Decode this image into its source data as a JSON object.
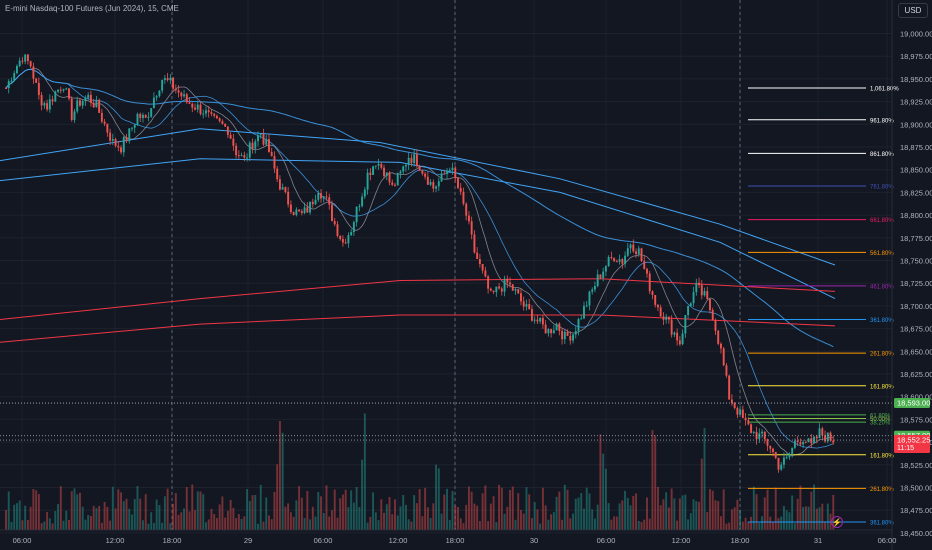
{
  "header": {
    "symbol": "E-mini Nasdaq-100 Futures (Jun 2024)",
    "separator1": ", ",
    "interval": "15",
    "separator2": ", ",
    "exchange": "CME",
    "currency": "USD"
  },
  "colors": {
    "background": "#131722",
    "grid": "#1e222d",
    "up": "#26a69a",
    "down": "#ef5350",
    "ma_blue": "#2962ff",
    "ma_red": "#f23645",
    "price_label": "#f23645",
    "green_label": "#4caf50"
  },
  "icons": {
    "alert": "lightning-bolt-icon"
  },
  "chart_data": {
    "type": "candlestick",
    "y_axis": {
      "ticks": [
        "19,000.00",
        "18,975.00",
        "18,950.00",
        "18,925.00",
        "18,900.00",
        "18,875.00",
        "18,850.00",
        "18,825.00",
        "18,800.00",
        "18,775.00",
        "18,750.00",
        "18,725.00",
        "18,700.00",
        "18,675.00",
        "18,650.00",
        "18,625.00",
        "18,600.00",
        "18,575.00",
        "18,550.00",
        "18,525.00",
        "18,500.00",
        "18,475.00",
        "18,450.00"
      ],
      "range": [
        18440,
        19020
      ]
    },
    "x_axis": {
      "ticks": [
        "06:00",
        "12:00",
        "18:00",
        "29",
        "06:00",
        "12:00",
        "18:00",
        "30",
        "06:00",
        "12:00",
        "18:00",
        "31",
        "06:00"
      ]
    },
    "session_breaks": [
      "18:00",
      "18:00",
      "18:00"
    ],
    "price_labels": [
      {
        "text": "18,593.00",
        "value": 18593,
        "color": "#4caf50"
      },
      {
        "text": "18,557.00",
        "value": 18557,
        "color": "#4caf50"
      },
      {
        "text": "18,552.25",
        "value": 18552.25,
        "color": "#f23645",
        "countdown": "11:15"
      }
    ],
    "fib_levels": [
      {
        "label": "1,061.80%",
        "value": 18940,
        "color": "#ffffff"
      },
      {
        "label": "961.80%",
        "value": 18905,
        "color": "#ffffff"
      },
      {
        "label": "861.80%",
        "value": 18868,
        "color": "#ffffff"
      },
      {
        "label": "761.80%",
        "value": 18832,
        "color": "#3f51b5"
      },
      {
        "label": "661.80%",
        "value": 18795,
        "color": "#e91e63"
      },
      {
        "label": "561.80%",
        "value": 18759,
        "color": "#ff9800"
      },
      {
        "label": "461.80%",
        "value": 18722,
        "color": "#9c27b0"
      },
      {
        "label": "361.80%",
        "value": 18685,
        "color": "#2196f3"
      },
      {
        "label": "261.80%",
        "value": 18648,
        "color": "#ff9800"
      },
      {
        "label": "161.80%",
        "value": 18612,
        "color": "#ffeb3b"
      },
      {
        "label": "61.80%",
        "value": 18580,
        "color": "#4caf50"
      },
      {
        "label": "50.00%",
        "value": 18576,
        "color": "#8bc34a"
      },
      {
        "label": "38.20%",
        "value": 18572,
        "color": "#4caf50"
      },
      {
        "label": "161.80%",
        "value": 18536,
        "color": "#ffeb3b"
      },
      {
        "label": "261.80%",
        "value": 18499,
        "color": "#ff9800"
      },
      {
        "label": "361.80%",
        "value": 18462,
        "color": "#2196f3"
      }
    ],
    "price_path": [
      18940,
      18960,
      18975,
      18965,
      18930,
      18920,
      18935,
      18945,
      18910,
      18925,
      18930,
      18920,
      18900,
      18880,
      18875,
      18890,
      18910,
      18905,
      18930,
      18950,
      18945,
      18935,
      18925,
      18920,
      18915,
      18905,
      18900,
      18895,
      18870,
      18860,
      18880,
      18890,
      18870,
      18840,
      18820,
      18805,
      18800,
      18810,
      18830,
      18815,
      18790,
      18770,
      18785,
      18815,
      18845,
      18860,
      18850,
      18830,
      18845,
      18865,
      18860,
      18845,
      18830,
      18840,
      18855,
      18830,
      18800,
      18760,
      18735,
      18710,
      18720,
      18725,
      18715,
      18700,
      18690,
      18680,
      18672,
      18680,
      18665,
      18670,
      18690,
      18710,
      18730,
      18745,
      18755,
      18750,
      18770,
      18760,
      18730,
      18705,
      18690,
      18675,
      18660,
      18700,
      18720,
      18710,
      18690,
      18650,
      18600,
      18585,
      18570,
      18560,
      18555,
      18545,
      18525,
      18530,
      18550,
      18555,
      18545,
      18560,
      18555,
      18552
    ]
  }
}
